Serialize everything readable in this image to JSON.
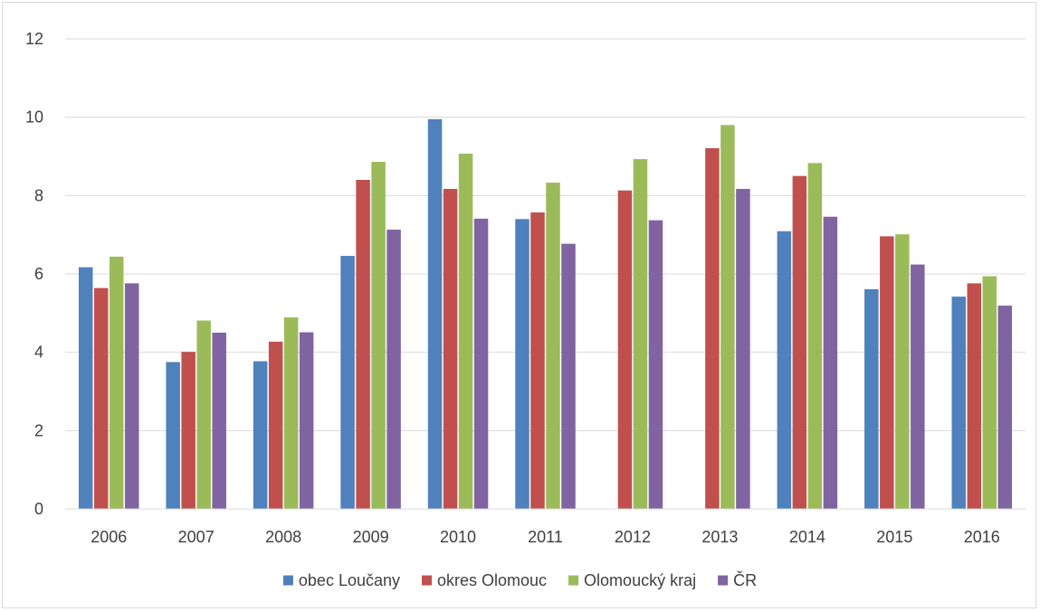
{
  "chart_data": {
    "type": "bar",
    "title": "",
    "xlabel": "",
    "ylabel": "",
    "ylim": [
      0,
      12
    ],
    "yticks": [
      0,
      2,
      4,
      6,
      8,
      10,
      12
    ],
    "grid": true,
    "legend_position": "bottom",
    "categories": [
      "2006",
      "2007",
      "2008",
      "2009",
      "2010",
      "2011",
      "2012",
      "2013",
      "2014",
      "2015",
      "2016"
    ],
    "series": [
      {
        "name": "obec Loučany",
        "color": "#4f81bd",
        "values": [
          6.17,
          3.75,
          3.77,
          6.46,
          9.95,
          7.4,
          null,
          null,
          7.09,
          5.61,
          5.42
        ]
      },
      {
        "name": "okres Olomouc",
        "color": "#c0504d",
        "values": [
          5.64,
          4.01,
          4.27,
          8.4,
          8.17,
          7.57,
          8.13,
          9.21,
          8.5,
          6.96,
          5.76
        ]
      },
      {
        "name": "Olomoucký kraj",
        "color": "#9bbb59",
        "values": [
          6.44,
          4.81,
          4.89,
          8.86,
          9.07,
          8.33,
          8.93,
          9.8,
          8.83,
          7.01,
          5.94
        ]
      },
      {
        "name": "ČR",
        "color": "#8064a2",
        "values": [
          5.76,
          4.5,
          4.51,
          7.13,
          7.41,
          6.77,
          7.37,
          8.17,
          7.46,
          6.24,
          5.19
        ]
      }
    ]
  }
}
